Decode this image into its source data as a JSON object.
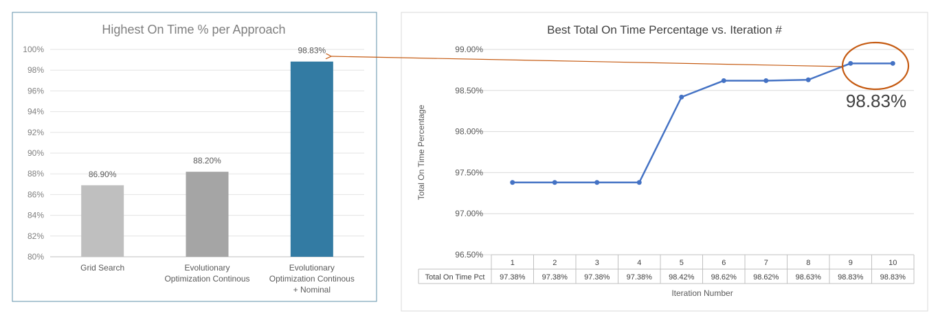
{
  "chart_data": [
    {
      "type": "bar",
      "title": "Highest On Time % per Approach",
      "categories": [
        [
          "Grid Search"
        ],
        [
          "Evolutionary",
          "Optimization Continous"
        ],
        [
          "Evolutionary",
          "Optimization Continous",
          "+ Nominal"
        ]
      ],
      "values": [
        86.9,
        88.2,
        98.83
      ],
      "data_labels": [
        "86.90%",
        "88.20%",
        "98.83%"
      ],
      "bar_colors": [
        "#bfbfbf",
        "#a5a5a5",
        "#337ba3"
      ],
      "ylim": [
        80,
        100
      ],
      "yticks": [
        "80%",
        "82%",
        "84%",
        "86%",
        "88%",
        "90%",
        "92%",
        "94%",
        "96%",
        "98%",
        "100%"
      ],
      "grid": true,
      "xlabel": "",
      "ylabel": ""
    },
    {
      "type": "line",
      "title": "Best Total On Time Percentage vs. Iteration #",
      "x": [
        1,
        2,
        3,
        4,
        5,
        6,
        7,
        8,
        9,
        10
      ],
      "values": [
        97.38,
        97.38,
        97.38,
        97.38,
        98.42,
        98.62,
        98.62,
        98.63,
        98.83,
        98.83
      ],
      "ylim": [
        96.5,
        99.0
      ],
      "yticks": [
        "96.50%",
        "97.00%",
        "97.50%",
        "98.00%",
        "98.50%",
        "99.00%"
      ],
      "xlabel": "Iteration Number",
      "ylabel": "Total On Time Percentage",
      "table": {
        "row_label": "Total On Time Pct",
        "cells": [
          "97.38%",
          "97.38%",
          "97.38%",
          "97.38%",
          "98.42%",
          "98.62%",
          "98.62%",
          "98.63%",
          "98.83%",
          "98.83%"
        ]
      },
      "line_color": "#4472c4",
      "grid": true
    }
  ],
  "annotation": {
    "callout_text": "98.83%",
    "circle_color": "#c55a11",
    "arrow_color": "#c55a11"
  }
}
